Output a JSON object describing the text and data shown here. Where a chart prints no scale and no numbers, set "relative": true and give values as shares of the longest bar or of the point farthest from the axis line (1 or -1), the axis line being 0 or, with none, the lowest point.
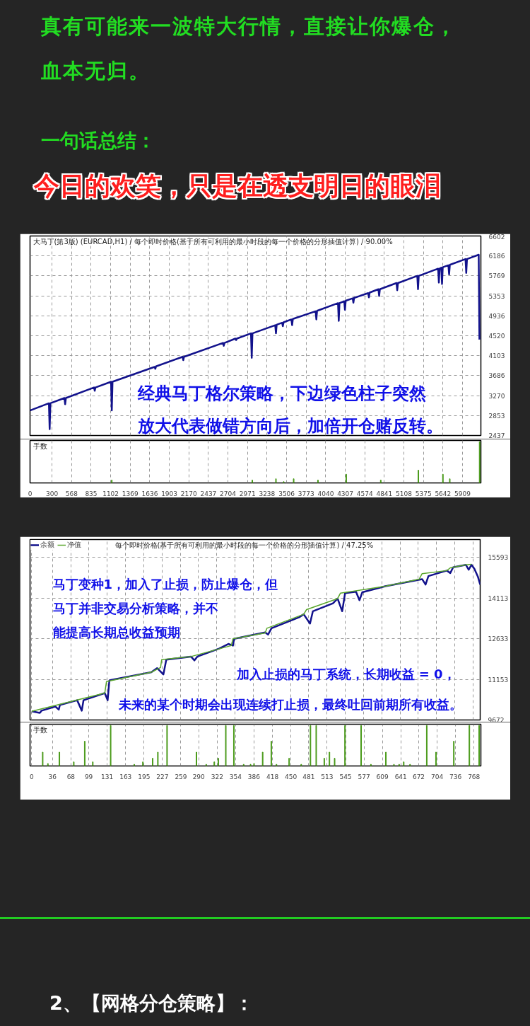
{
  "chart_data": [
    {
      "type": "other",
      "annotations": [
        "真有可能来一波特大行情，直接让你爆仓，血本无归。",
        "一句话总结：",
        "今日的欢笑，只是在透支明日的眼泪"
      ]
    },
    {
      "type": "line",
      "title": "大马丁(第3版) (EURCAD,H1) / 每个即时价格(基于所有可利用的最小时段的每一个价格的分形插值计算) / 90.00%",
      "xlim": [
        0,
        6160
      ],
      "ylim": [
        2437,
        6602
      ],
      "xticks": [
        0,
        300,
        568,
        835,
        1102,
        1369,
        1636,
        1903,
        2170,
        2437,
        2704,
        2971,
        3238,
        3506,
        3773,
        4040,
        4307,
        4574,
        4841,
        5108,
        5375,
        5642,
        5909
      ],
      "yticks": [
        2437,
        2853,
        3270,
        3686,
        4103,
        4520,
        4936,
        5353,
        5769,
        6186,
        6602
      ],
      "tick_labels": "y",
      "grid": true,
      "legend": false,
      "series": [
        {
          "color": "#12128c",
          "x": [
            0,
            258,
            268,
            278,
            470,
            480,
            490,
            874,
            884,
            894,
            1107,
            1117,
            1127,
            1702,
            1712,
            1722,
            2084,
            2094,
            2104,
            2637,
            2647,
            2657,
            2806,
            2816,
            2826,
            3019,
            3029,
            3039,
            3350,
            3360,
            3370,
            3444,
            3454,
            3464,
            3571,
            3581,
            3591,
            3902,
            3912,
            3922,
            4208,
            4218,
            4228,
            4293,
            4303,
            4313,
            4408,
            4418,
            4428,
            4620,
            4630,
            4640,
            4760,
            4770,
            4780,
            5007,
            5017,
            5027,
            5291,
            5301,
            5311,
            5576,
            5586,
            5596,
            5619,
            5629,
            5639,
            5716,
            5726,
            5736,
            5950,
            5960,
            5970,
            6130,
            6140
          ],
          "values": [
            2960,
            3110,
            2570,
            3110,
            3220,
            3090,
            3220,
            3440,
            3370,
            3440,
            3560,
            2960,
            3560,
            3870,
            3830,
            3880,
            4080,
            4010,
            4080,
            4370,
            4310,
            4370,
            4460,
            4430,
            4460,
            4570,
            4060,
            4570,
            4740,
            4570,
            4750,
            4790,
            4720,
            4800,
            4860,
            4740,
            4870,
            5030,
            4860,
            5040,
            5200,
            4830,
            5200,
            5240,
            5060,
            5250,
            5300,
            5210,
            5310,
            5410,
            5320,
            5420,
            5490,
            5350,
            5490,
            5620,
            5470,
            5620,
            5770,
            5490,
            5770,
            5920,
            5630,
            5920,
            5940,
            5600,
            5950,
            5990,
            5800,
            6000,
            6120,
            5830,
            6120,
            6210,
            4440
          ]
        }
      ],
      "annotations": [
        "经典马丁格尔策略，下边绿色柱子突然",
        "放大代表做错方向后，加倍开仓赌反转。"
      ]
    },
    {
      "type": "bar",
      "title": "手数",
      "relative": true,
      "xlim": [
        0,
        6160
      ],
      "xticks": [
        0,
        300,
        568,
        835,
        1102,
        1369,
        1636,
        1903,
        2170,
        2437,
        2704,
        2971,
        3238,
        3506,
        3773,
        4040,
        4307,
        4574,
        4841,
        5108,
        5375,
        5642,
        5909
      ],
      "grid": "x",
      "color": "#4a9a1a",
      "x": [
        1117,
        3037,
        3360,
        3466,
        3602,
        3934,
        4320,
        4792,
        5306,
        5641,
        5735,
        6143
      ],
      "values": [
        0.07,
        0.07,
        0.1,
        0.03,
        0.1,
        0.07,
        0.21,
        0.07,
        0.31,
        0.21,
        0.1,
        1
      ]
    },
    {
      "type": "line",
      "title": "每个即时价格(基于所有可利用的最小时段的每一个价格的分形插值计算) / 47.25%",
      "xlim": [
        -3,
        780
      ],
      "ylim": [
        9672,
        16240
      ],
      "xticks": [
        0,
        36,
        68,
        99,
        131,
        163,
        195,
        227,
        259,
        290,
        322,
        354,
        386,
        418,
        450,
        481,
        513,
        545,
        577,
        609,
        641,
        672,
        704,
        736,
        768
      ],
      "yticks": [
        9672,
        11153,
        12633,
        14113,
        15593
      ],
      "tick_labels": "y",
      "grid": true,
      "legend": "top left",
      "series": [
        {
          "name": "余额",
          "color": "#12128c",
          "x": [
            0,
            14,
            17,
            41,
            47,
            49,
            79,
            87,
            90,
            127,
            132,
            135,
            138,
            208,
            218,
            229,
            234,
            277,
            283,
            288,
            326,
            342,
            350,
            352,
            406,
            411,
            417,
            465,
            473,
            484,
            489,
            524,
            532,
            540,
            545,
            564,
            570,
            575,
            615,
            679,
            685,
            690,
            722,
            728,
            733,
            755,
            760,
            765,
            770,
            776,
            780
          ],
          "values": [
            9990,
            9930,
            10010,
            10160,
            10050,
            10220,
            10390,
            10010,
            10390,
            10650,
            10390,
            11110,
            11130,
            11410,
            11560,
            11330,
            11870,
            11980,
            11840,
            11980,
            12270,
            12440,
            12380,
            12630,
            12860,
            12780,
            13010,
            13410,
            13520,
            13180,
            13630,
            13920,
            14090,
            13630,
            14290,
            14340,
            14030,
            14320,
            14540,
            14800,
            14600,
            14910,
            15110,
            15020,
            15230,
            15320,
            15140,
            15320,
            15170,
            14890,
            14600
          ]
        },
        {
          "name": "净值",
          "color": "#5aa62c",
          "x": [
            0,
            127,
            130,
            208,
            224,
            226,
            277,
            347,
            350,
            406,
            409,
            473,
            478,
            532,
            537,
            615,
            674,
            679,
            722,
            728,
            755,
            765
          ],
          "values": [
            9990,
            10650,
            11070,
            11410,
            11580,
            11870,
            11980,
            12380,
            12630,
            12840,
            13010,
            13520,
            13690,
            14090,
            14290,
            14540,
            14800,
            15000,
            15110,
            15210,
            15320,
            15340
          ]
        }
      ],
      "annotations": [
        "马丁变种1，加入了止损，防止爆仓，但",
        "马丁并非交易分析策略，并不",
        "能提高长期总收益预期",
        "加入止损的马丁系统，长期收益 = 0，",
        "未来的某个时期会出现连续打止损，最终吐回前期所有收益。"
      ]
    },
    {
      "type": "bar",
      "title": "手数",
      "relative": true,
      "xlim": [
        -3,
        780
      ],
      "xticks": [
        0,
        36,
        68,
        99,
        131,
        163,
        195,
        227,
        259,
        290,
        322,
        354,
        386,
        418,
        450,
        481,
        513,
        545,
        577,
        609,
        641,
        672,
        704,
        736,
        768
      ],
      "grid": "x",
      "color": "#4a9a1a",
      "x": [
        19,
        28,
        48,
        73,
        92,
        106,
        137,
        178,
        193,
        210,
        219,
        235,
        286,
        303,
        317,
        324,
        337,
        351,
        368,
        380,
        386,
        401,
        416,
        425,
        447,
        468,
        484,
        494,
        508,
        517,
        526,
        544,
        572,
        589,
        615,
        629,
        638,
        646,
        657,
        686,
        702,
        733,
        760,
        777
      ],
      "values": [
        0.34,
        0.06,
        0.34,
        0.1,
        0.61,
        0.1,
        1,
        0.04,
        0.1,
        0.19,
        0.34,
        1,
        0.34,
        0.04,
        0.1,
        0.19,
        1,
        1,
        0.04,
        0.04,
        0.06,
        0.34,
        0.61,
        0.04,
        0.19,
        0.04,
        1,
        1,
        0.19,
        0.34,
        0.19,
        1,
        1,
        0.04,
        0.34,
        0.04,
        0.04,
        0.1,
        0.04,
        1,
        0.34,
        0.61,
        1,
        1
      ]
    },
    {
      "type": "other",
      "annotations": [
        "2、【网格分仓策略】："
      ]
    }
  ]
}
